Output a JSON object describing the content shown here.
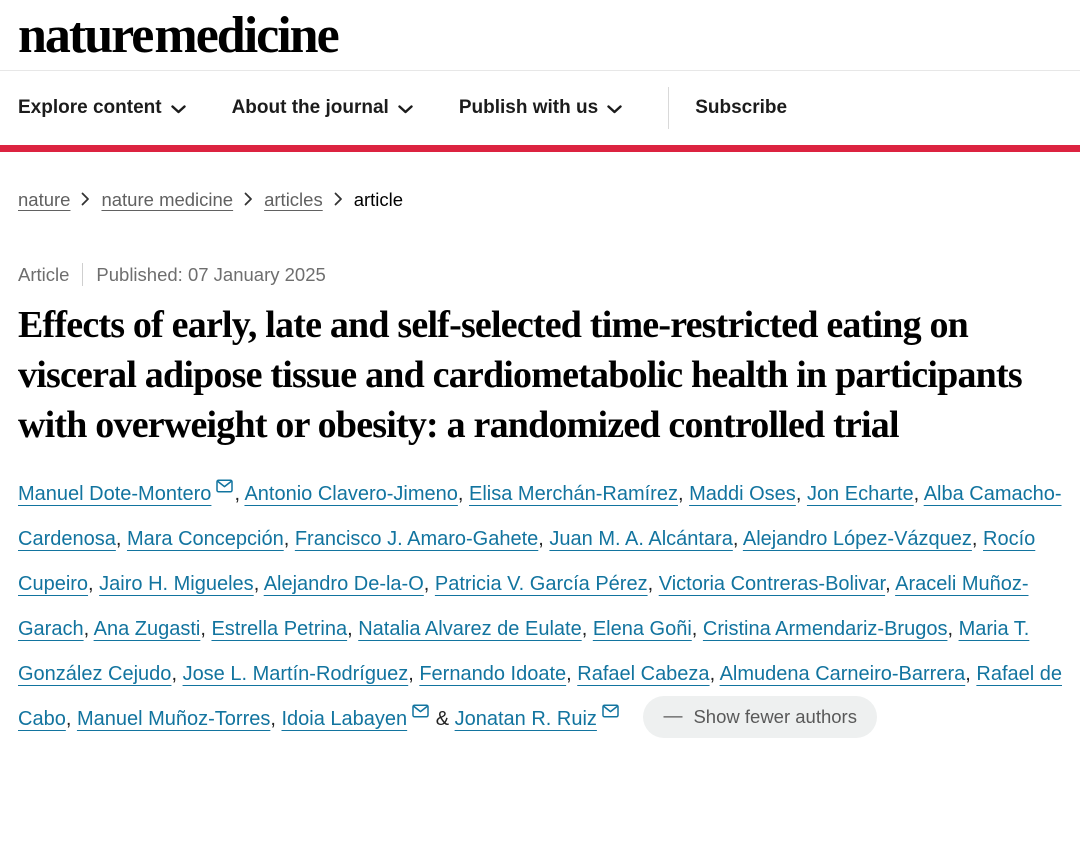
{
  "header": {
    "logo": "nature medicine",
    "nav": [
      {
        "label": "Explore content",
        "has_dropdown": true
      },
      {
        "label": "About the journal",
        "has_dropdown": true
      },
      {
        "label": "Publish with us",
        "has_dropdown": true
      },
      {
        "label": "Subscribe",
        "has_dropdown": false
      }
    ]
  },
  "breadcrumb": {
    "items": [
      {
        "label": "nature",
        "link": true
      },
      {
        "label": "nature medicine",
        "link": true
      },
      {
        "label": "articles",
        "link": true
      },
      {
        "label": "article",
        "link": false
      }
    ]
  },
  "article": {
    "type_label": "Article",
    "published_label": "Published:",
    "published_date": "07 January 2025",
    "title": "Effects of early, late and self-selected time-restricted eating on visceral adipose tissue and cardiometabolic health in participants with overweight or obesity: a randomized controlled trial"
  },
  "authors": {
    "list": [
      {
        "name": "Manuel Dote-Montero",
        "email": true
      },
      {
        "name": "Antonio Clavero-Jimeno",
        "email": false
      },
      {
        "name": "Elisa Merchán-Ramírez",
        "email": false
      },
      {
        "name": "Maddi Oses",
        "email": false
      },
      {
        "name": "Jon Echarte",
        "email": false
      },
      {
        "name": "Alba Camacho-Cardenosa",
        "email": false
      },
      {
        "name": "Mara Concepción",
        "email": false
      },
      {
        "name": "Francisco J. Amaro-Gahete",
        "email": false
      },
      {
        "name": "Juan M. A. Alcántara",
        "email": false
      },
      {
        "name": "Alejandro López-Vázquez",
        "email": false
      },
      {
        "name": "Rocío Cupeiro",
        "email": false
      },
      {
        "name": "Jairo H. Migueles",
        "email": false
      },
      {
        "name": "Alejandro De-la-O",
        "email": false
      },
      {
        "name": "Patricia V. García Pérez",
        "email": false
      },
      {
        "name": "Victoria Contreras-Bolivar",
        "email": false
      },
      {
        "name": "Araceli Muñoz-Garach",
        "email": false
      },
      {
        "name": "Ana Zugasti",
        "email": false
      },
      {
        "name": "Estrella Petrina",
        "email": false
      },
      {
        "name": "Natalia Alvarez de Eulate",
        "email": false
      },
      {
        "name": "Elena Goñi",
        "email": false
      },
      {
        "name": "Cristina Armendariz-Brugos",
        "email": false
      },
      {
        "name": "Maria T. González Cejudo",
        "email": false
      },
      {
        "name": "Jose L. Martín-Rodríguez",
        "email": false
      },
      {
        "name": "Fernando Idoate",
        "email": false
      },
      {
        "name": "Rafael Cabeza",
        "email": false
      },
      {
        "name": "Almudena Carneiro-Barrera",
        "email": false
      },
      {
        "name": "Rafael de Cabo",
        "email": false
      },
      {
        "name": "Manuel Muñoz-Torres",
        "email": false
      },
      {
        "name": "Idoia Labayen",
        "email": true
      },
      {
        "name": "Jonatan R. Ruiz",
        "email": true
      }
    ],
    "separator": ", ",
    "last_separator": " & ",
    "show_fewer_dash": "—",
    "show_fewer_label": "Show fewer authors"
  },
  "icons": {
    "nav_dropdown": "chevron-down-icon",
    "breadcrumb_separator": "chevron-right-icon",
    "author_email": "envelope-icon",
    "show_fewer": "minus-icon"
  },
  "colors": {
    "accent_red": "#dc2340",
    "link_blue": "#12749f"
  }
}
